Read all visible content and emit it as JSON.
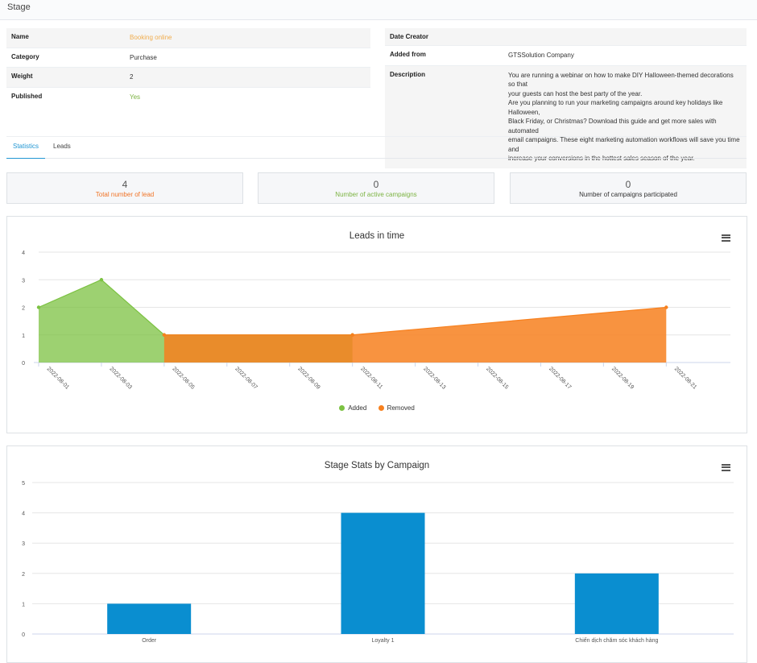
{
  "page": {
    "title": "Stage"
  },
  "details_left": [
    {
      "label": "Name",
      "value": "Booking online"
    },
    {
      "label": "Category",
      "value": "Purchase"
    },
    {
      "label": "Weight",
      "value": "2"
    },
    {
      "label": "Published",
      "value": "Yes"
    }
  ],
  "details_right": {
    "date_creator": {
      "label": "Date Creator",
      "value": ""
    },
    "added_from": {
      "label": "Added from",
      "value": "GTSSolution Company"
    },
    "description": {
      "label": "Description",
      "lines": [
        "You are running a webinar on how to make DIY Halloween-themed decorations so that",
        "your guests can host the best party of the year.",
        "Are you planning to run your marketing campaigns around key holidays like Halloween,",
        "Black Friday, or Christmas? Download this guide and get more sales with automated",
        "email campaigns. These eight marketing automation workflows will save you time and",
        "increase your conversions in the hottest sales season of the year."
      ]
    }
  },
  "tabs": [
    {
      "label": "Statistics",
      "active": true
    },
    {
      "label": "Leads",
      "active": false
    }
  ],
  "stats": [
    {
      "number": "4",
      "label": "Total number of lead",
      "color": "#f07427"
    },
    {
      "number": "0",
      "label": "Number of active campaigns",
      "color": "#7cb342"
    },
    {
      "number": "0",
      "label": "Number of campaigns participated",
      "color": "#333333"
    }
  ],
  "chart_data": [
    {
      "type": "area",
      "title": "Leads in time",
      "xlabel": "",
      "ylabel": "",
      "categories": [
        "2022-08-01",
        "2022-08-03",
        "2022-08-05",
        "2022-08-07",
        "2022-08-09",
        "2022-08-11",
        "2022-08-13",
        "2022-08-15",
        "2022-08-17",
        "2022-08-19",
        "2022-08-21"
      ],
      "yticks": [
        0,
        1,
        2,
        3,
        4
      ],
      "ylim": [
        0,
        4
      ],
      "grid": true,
      "legend_position": "bottom",
      "series": [
        {
          "name": "Added",
          "color": "#7cc242",
          "points": [
            [
              "2022-08-01",
              2
            ],
            [
              "2022-08-03",
              3
            ],
            [
              "2022-08-05",
              1
            ],
            [
              "2022-08-11",
              1
            ]
          ]
        },
        {
          "name": "Removed",
          "color": "#f7801e",
          "points": [
            [
              "2022-08-05",
              1
            ],
            [
              "2022-08-11",
              1
            ],
            [
              "2022-08-21",
              2
            ]
          ]
        }
      ]
    },
    {
      "type": "bar",
      "title": "Stage Stats by Campaign",
      "xlabel": "",
      "ylabel": "",
      "categories": [
        "Order",
        "Loyalty 1",
        "Chiến dịch chăm sóc khách hàng"
      ],
      "values": [
        1,
        4,
        2
      ],
      "yticks": [
        0,
        1,
        2,
        3,
        4,
        5
      ],
      "ylim": [
        0,
        5
      ],
      "grid": true,
      "color": "#0a8ed0"
    }
  ]
}
